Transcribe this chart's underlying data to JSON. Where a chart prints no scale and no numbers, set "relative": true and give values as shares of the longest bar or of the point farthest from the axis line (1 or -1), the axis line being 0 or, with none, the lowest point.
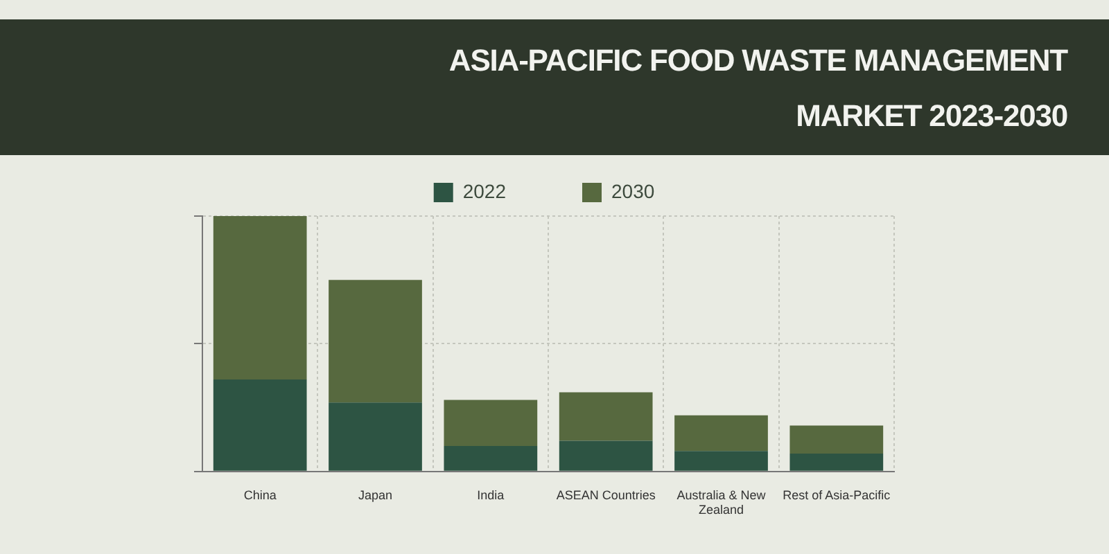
{
  "chart_data": {
    "type": "bar",
    "title": "ASIA-PACIFIC FOOD WASTE MANAGEMENT MARKET 2023-2030",
    "categories": [
      "China",
      "Japan",
      "India",
      "ASEAN Countries",
      "Australia & New Zealand",
      "Rest of Asia-Pacific"
    ],
    "series": [
      {
        "name": "2022",
        "color": "#2d5443",
        "values": [
          0.36,
          0.27,
          0.1,
          0.12,
          0.08,
          0.07
        ]
      },
      {
        "name": "2030",
        "color": "#57693f",
        "values": [
          0.64,
          0.48,
          0.18,
          0.19,
          0.14,
          0.11
        ]
      }
    ],
    "stacked": true,
    "relative": true,
    "grid": true,
    "legend": "top"
  }
}
